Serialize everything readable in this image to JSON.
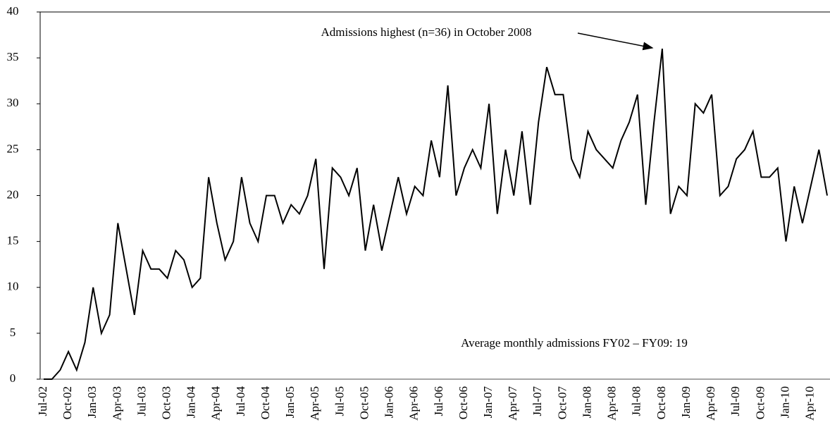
{
  "chart_data": {
    "type": "line",
    "categories": [
      "Jul-02",
      null,
      null,
      "Oct-02",
      null,
      null,
      "Jan-03",
      null,
      null,
      "Apr-03",
      null,
      null,
      "Jul-03",
      null,
      null,
      "Oct-03",
      null,
      null,
      "Jan-04",
      null,
      null,
      "Apr-04",
      null,
      null,
      "Jul-04",
      null,
      null,
      "Oct-04",
      null,
      null,
      "Jan-05",
      null,
      null,
      "Apr-05",
      null,
      null,
      "Jul-05",
      null,
      null,
      "Oct-05",
      null,
      null,
      "Jan-06",
      null,
      null,
      "Apr-06",
      null,
      null,
      "Jul-06",
      null,
      null,
      "Oct-06",
      null,
      null,
      "Jan-07",
      null,
      null,
      "Apr-07",
      null,
      null,
      "Jul-07",
      null,
      null,
      "Oct-07",
      null,
      null,
      "Jan-08",
      null,
      null,
      "Apr-08",
      null,
      null,
      "Jul-08",
      null,
      null,
      "Oct-08",
      null,
      null,
      "Jan-09",
      null,
      null,
      "Apr-09",
      null,
      null,
      "Jul-09",
      null,
      null,
      "Oct-09",
      null,
      null,
      "Jan-10",
      null,
      null,
      "Apr-10",
      null,
      null
    ],
    "values": [
      0,
      0,
      1,
      3,
      1,
      4,
      10,
      5,
      7,
      17,
      12,
      7,
      14,
      12,
      12,
      11,
      14,
      13,
      10,
      11,
      22,
      17,
      13,
      15,
      22,
      17,
      15,
      20,
      20,
      17,
      19,
      18,
      20,
      24,
      12,
      23,
      22,
      20,
      23,
      14,
      19,
      14,
      18,
      22,
      18,
      21,
      20,
      26,
      22,
      32,
      20,
      23,
      25,
      23,
      30,
      18,
      25,
      20,
      27,
      19,
      28,
      34,
      31,
      31,
      24,
      22,
      27,
      25,
      24,
      23,
      26,
      28,
      31,
      19,
      28,
      36,
      18,
      21,
      20,
      30,
      29,
      31,
      20,
      21,
      24,
      25,
      27,
      22,
      22,
      23,
      15,
      21,
      17,
      21,
      25,
      20
    ],
    "color": "#000000",
    "ylim": [
      0,
      40
    ],
    "yticks": [
      0,
      5,
      10,
      15,
      20,
      25,
      30,
      35,
      40
    ],
    "grid": false,
    "annotations": [
      "Admissions highest (n=36) in October 2008",
      "Average monthly admissions FY02 – FY09: 19"
    ]
  }
}
